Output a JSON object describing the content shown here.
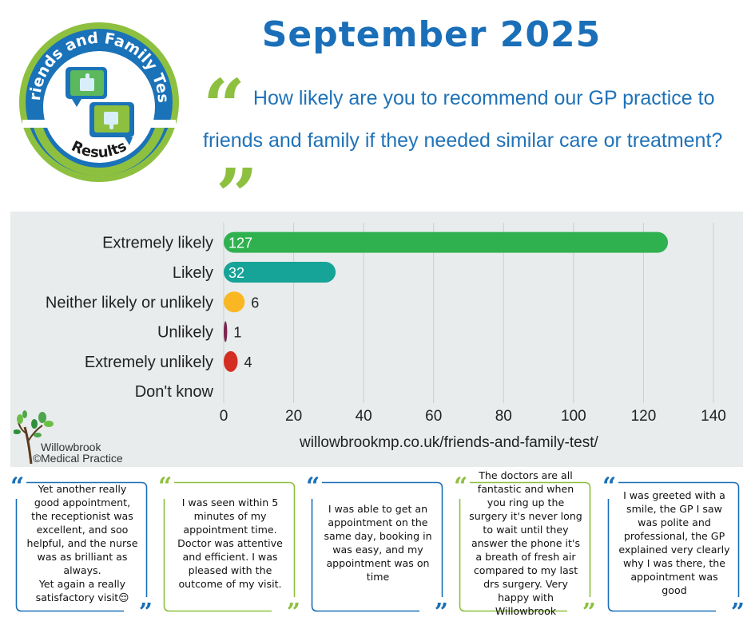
{
  "logo": {
    "top_text": "Friends and Family Test",
    "bottom_text": "Results",
    "icons": [
      "thumbs-up-icon",
      "thumbs-down-icon"
    ]
  },
  "header": {
    "title": "September 2025",
    "question": "How likely are you to recommend our GP practice to friends and family if they needed similar care or treatment?"
  },
  "chart_data": {
    "type": "bar",
    "orientation": "horizontal",
    "categories": [
      "Extremely likely",
      "Likely",
      "Neither likely or unlikely",
      "Unlikely",
      "Extremely unlikely",
      "Don't know"
    ],
    "values": [
      127,
      32,
      6,
      1,
      4,
      0
    ],
    "colors": [
      "#2fb150",
      "#16a398",
      "#f9b823",
      "#7a2650",
      "#d42e23",
      "#cccccc"
    ],
    "xlim": [
      0,
      140
    ],
    "xticks": [
      0,
      20,
      40,
      60,
      80,
      100,
      120,
      140
    ],
    "grid": "vertical",
    "url": "willowbrookmp.co.uk/friends-and-family-test/"
  },
  "practice": {
    "copyright": "©",
    "name_line1": "Willowbrook",
    "name_line2": "Medical Practice"
  },
  "comments": [
    {
      "text": "Yet another really good appointment, the receptionist was excellent, and soo helpful, and the nurse was as brilliant as always.\nYet again a really satisfactory visit😌",
      "color": "#1a6fb8"
    },
    {
      "text": "I was seen within 5 minutes of my appointment time. Doctor was attentive and efficient. I was pleased with the outcome of my visit.",
      "color": "#8ec03f"
    },
    {
      "text": "I was able to get an appointment on the same day, booking in was easy, and my appointment was on time",
      "color": "#1a6fb8"
    },
    {
      "text": "The doctors are all fantastic and when you ring up the surgery it's never long to wait until they answer the phone it's a breath of fresh air compared to my last drs surgery. Very happy with Willowbrook",
      "color": "#8ec03f"
    },
    {
      "text": "I was greeted with a smile, the GP I saw was polite and professional, the GP explained very clearly why I was there, the appointment was good",
      "color": "#1a6fb8"
    }
  ]
}
